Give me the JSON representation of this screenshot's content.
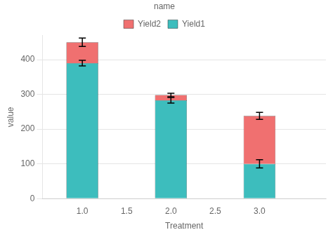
{
  "chart_data": {
    "type": "bar",
    "x_label": "Treatment",
    "y_label": "value",
    "x": [
      1.0,
      2.0,
      3.0
    ],
    "series": [
      {
        "name": "Yield1",
        "color": "#3DBDBD",
        "values": [
          390,
          283,
          100
        ],
        "errors": [
          8,
          8,
          12
        ]
      },
      {
        "name": "Yield2",
        "color": "#F07070",
        "values": [
          60,
          15,
          138
        ],
        "errors": [
          12,
          5,
          10
        ]
      }
    ],
    "stacked": true,
    "xlim": [
      0.55,
      3.75
    ],
    "xticks": [
      {
        "value": 1.0,
        "label": "1.0"
      },
      {
        "value": 1.5,
        "label": "1.5"
      },
      {
        "value": 2.0,
        "label": "2.0"
      },
      {
        "value": 2.5,
        "label": "2.5"
      },
      {
        "value": 3.0,
        "label": "3.0"
      }
    ],
    "ylim": [
      0,
      470
    ],
    "yticks": [
      0,
      100,
      200,
      300,
      400
    ],
    "grid": "y",
    "legend": "top",
    "legend_title": "name"
  }
}
